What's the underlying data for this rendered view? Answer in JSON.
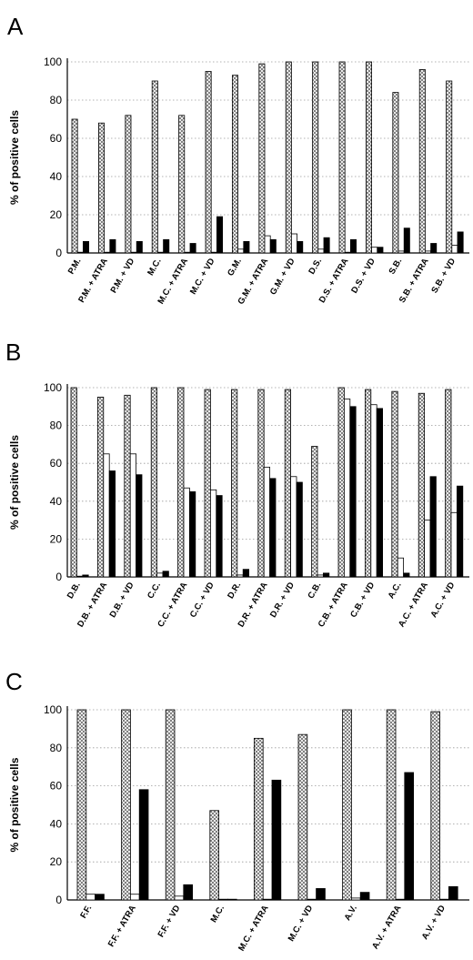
{
  "chart_data": [
    {
      "type": "bar",
      "panel": "A",
      "ylabel": "% of positive cells",
      "ylim": [
        0,
        100
      ],
      "yticks": [
        "0",
        "20",
        "40",
        "60",
        "80",
        "100"
      ],
      "grid": true,
      "categories": [
        "P.M.",
        "P.M. + ATRA",
        "P.M. + VD",
        "M.C.",
        "M.C. + ATRA",
        "M.C. + VD",
        "G.M.",
        "G.M. + ATRA",
        "G.M. + VD",
        "D.S.",
        "D.S. + ATRA",
        "D.S. + VD",
        "S.B.",
        "S.B. + ATRA",
        "S.B. + VD"
      ],
      "series": [
        {
          "values": [
            70,
            68,
            72,
            90,
            72,
            95,
            93,
            99,
            100,
            100,
            100,
            100,
            84,
            96,
            90
          ],
          "fill": "hatched"
        },
        {
          "values": [
            0,
            0,
            0,
            0,
            0,
            0,
            2,
            9,
            10,
            2,
            0,
            3,
            1,
            1,
            4
          ],
          "fill": "white"
        },
        {
          "values": [
            6,
            7,
            6,
            7,
            5,
            19,
            6,
            7,
            6,
            8,
            7,
            3,
            13,
            5,
            11
          ],
          "fill": "black"
        }
      ]
    },
    {
      "type": "bar",
      "panel": "B",
      "ylabel": "% of positive cells",
      "ylim": [
        0,
        100
      ],
      "yticks": [
        "0",
        "20",
        "40",
        "60",
        "80",
        "100"
      ],
      "grid": true,
      "categories": [
        "D.B.",
        "D.B. + ATRA",
        "D.B. + VD",
        "C.C.",
        "C.C. + ATRA",
        "C.C. + VD",
        "D.R.",
        "D.R. + ATRA",
        "D.R. + VD",
        "C.B.",
        "C.B. + ATRA",
        "C.B. + VD",
        "A.C.",
        "A.C. + ATRA",
        "A.C. + VD"
      ],
      "series": [
        {
          "values": [
            100,
            95,
            96,
            100,
            100,
            99,
            99,
            99,
            99,
            69,
            100,
            99,
            98,
            97,
            99
          ],
          "fill": "hatched"
        },
        {
          "values": [
            0,
            65,
            65,
            2,
            47,
            46,
            1,
            58,
            53,
            1,
            94,
            91,
            10,
            30,
            34
          ],
          "fill": "white"
        },
        {
          "values": [
            1,
            56,
            54,
            3,
            45,
            43,
            4,
            52,
            50,
            2,
            90,
            89,
            2,
            53,
            48
          ],
          "fill": "black"
        }
      ]
    },
    {
      "type": "bar",
      "panel": "C",
      "ylabel": "% of positive cells",
      "ylim": [
        0,
        100
      ],
      "yticks": [
        "0",
        "20",
        "40",
        "60",
        "80",
        "100"
      ],
      "grid": true,
      "categories": [
        "F.F.",
        "F.F. + ATRA",
        "F.F. + VD",
        "M.C.",
        "M.C. + ATRA",
        "M.C. + VD",
        "A.V.",
        "A.V. + ATRA",
        "A.V. + VD"
      ],
      "series": [
        {
          "values": [
            100,
            100,
            100,
            47,
            85,
            87,
            100,
            100,
            99
          ],
          "fill": "hatched"
        },
        {
          "values": [
            3,
            3,
            2,
            0,
            0,
            0,
            1,
            0,
            0
          ],
          "fill": "white"
        },
        {
          "values": [
            3,
            58,
            8,
            0,
            63,
            6,
            4,
            67,
            7
          ],
          "fill": "black"
        }
      ]
    }
  ]
}
